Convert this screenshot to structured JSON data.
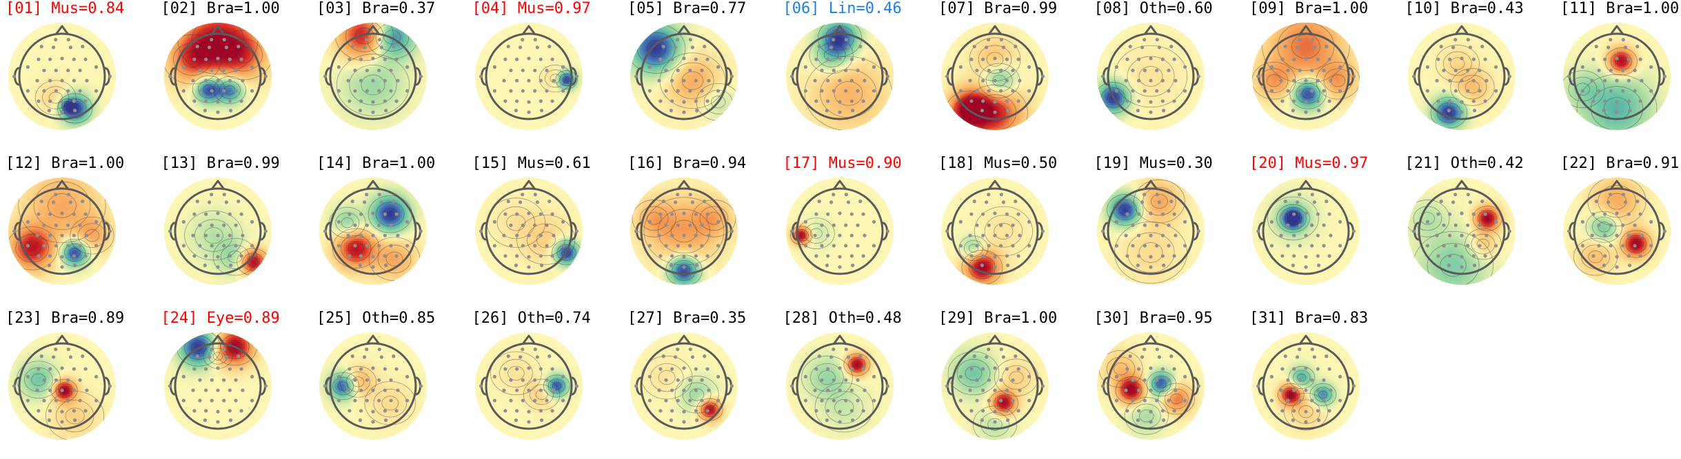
{
  "colors": {
    "default_title": "#000000",
    "flag_red": "#ff0000",
    "flag_blue": "#1e7fe0",
    "head_outline": "#5a5a5a",
    "sensor": "#8f8f8f",
    "map_neutral": "#fdf6b4"
  },
  "components": [
    {
      "label": "[01] Mus=0.84",
      "flag": "red",
      "blobs": [
        [
          0.3,
          0.75,
          0.24,
          -1.0
        ],
        [
          0.12,
          0.7,
          0.12,
          -0.5
        ],
        [
          -0.15,
          0.5,
          0.28,
          0.2
        ]
      ]
    },
    {
      "label": "[02] Bra=1.00",
      "flag": "none",
      "blobs": [
        [
          -0.22,
          0.3,
          0.22,
          -1.0
        ],
        [
          0.28,
          0.32,
          0.22,
          -0.8
        ],
        [
          0.0,
          -0.85,
          0.55,
          0.85
        ],
        [
          -0.6,
          -0.4,
          0.4,
          0.55
        ],
        [
          0.6,
          -0.5,
          0.4,
          0.5
        ]
      ]
    },
    {
      "label": "[03] Bra=0.37",
      "flag": "none",
      "blobs": [
        [
          0.45,
          -0.92,
          0.35,
          -0.8
        ],
        [
          -0.2,
          -0.95,
          0.4,
          0.9
        ],
        [
          0.0,
          0.2,
          0.5,
          -0.3
        ]
      ]
    },
    {
      "label": "[04] Mus=0.97",
      "flag": "red",
      "blobs": [
        [
          0.88,
          0.08,
          0.15,
          -1.0
        ],
        [
          0.62,
          0.05,
          0.22,
          0.15
        ]
      ]
    },
    {
      "label": "[05] Bra=0.77",
      "flag": "none",
      "blobs": [
        [
          -0.65,
          -0.65,
          0.4,
          -1.0
        ],
        [
          0.2,
          0.1,
          0.45,
          0.4
        ],
        [
          0.8,
          0.6,
          0.3,
          -0.2
        ]
      ]
    },
    {
      "label": "[06] Lin=0.46",
      "flag": "blue",
      "blobs": [
        [
          0.0,
          -0.9,
          0.3,
          -0.9
        ],
        [
          -0.2,
          -0.5,
          0.3,
          -0.4
        ],
        [
          0.2,
          0.4,
          0.6,
          0.35
        ]
      ]
    },
    {
      "label": "[07] Bra=0.99",
      "flag": "none",
      "blobs": [
        [
          0.1,
          0.1,
          0.28,
          -0.6
        ],
        [
          -0.6,
          0.8,
          0.32,
          1.0
        ],
        [
          0.0,
          0.85,
          0.45,
          0.8
        ],
        [
          0.0,
          -0.4,
          0.35,
          0.3
        ]
      ]
    },
    {
      "label": "[08] Oth=0.60",
      "flag": "none",
      "blobs": [
        [
          -0.88,
          0.5,
          0.25,
          -1.0
        ],
        [
          0.0,
          0.0,
          0.5,
          0.1
        ]
      ]
    },
    {
      "label": "[09] Bra=1.00",
      "flag": "none",
      "blobs": [
        [
          0.05,
          0.4,
          0.25,
          -1.0
        ],
        [
          0.0,
          -0.7,
          0.6,
          0.6
        ],
        [
          -0.75,
          0.1,
          0.3,
          0.4
        ],
        [
          0.75,
          0.1,
          0.3,
          0.4
        ]
      ]
    },
    {
      "label": "[10] Bra=0.43",
      "flag": "none",
      "blobs": [
        [
          -0.3,
          0.85,
          0.25,
          -1.0
        ],
        [
          0.25,
          0.25,
          0.3,
          0.3
        ],
        [
          -0.1,
          -0.3,
          0.3,
          0.15
        ]
      ]
    },
    {
      "label": "[11] Bra=1.00",
      "flag": "none",
      "blobs": [
        [
          0.1,
          -0.35,
          0.22,
          1.0
        ],
        [
          0.0,
          0.75,
          0.55,
          -0.55
        ],
        [
          -0.8,
          0.3,
          0.3,
          -0.25
        ]
      ]
    },
    {
      "label": "[12] Bra=1.00",
      "flag": "none",
      "blobs": [
        [
          0.3,
          0.5,
          0.22,
          -1.0
        ],
        [
          -0.7,
          0.4,
          0.35,
          0.85
        ],
        [
          0.0,
          -0.6,
          0.6,
          0.4
        ],
        [
          0.7,
          0.1,
          0.3,
          0.35
        ]
      ]
    },
    {
      "label": "[13] Bra=0.99",
      "flag": "none",
      "blobs": [
        [
          0.82,
          0.72,
          0.22,
          1.0
        ],
        [
          -0.1,
          0.1,
          0.4,
          -0.2
        ],
        [
          0.4,
          0.6,
          0.3,
          -0.3
        ]
      ]
    },
    {
      "label": "[14] Bra=1.00",
      "flag": "none",
      "blobs": [
        [
          0.4,
          -0.4,
          0.3,
          -1.0
        ],
        [
          -0.4,
          0.4,
          0.32,
          0.9
        ],
        [
          -0.6,
          -0.2,
          0.25,
          -0.4
        ],
        [
          0.5,
          0.65,
          0.35,
          0.4
        ]
      ]
    },
    {
      "label": "[15] Mus=0.61",
      "flag": "none",
      "blobs": [
        [
          0.88,
          0.5,
          0.2,
          -1.0
        ],
        [
          0.4,
          0.2,
          0.4,
          0.2
        ],
        [
          -0.3,
          -0.2,
          0.4,
          0.1
        ]
      ]
    },
    {
      "label": "[16] Bra=0.94",
      "flag": "none",
      "blobs": [
        [
          0.0,
          0.92,
          0.25,
          -1.0
        ],
        [
          0.0,
          0.0,
          0.55,
          0.45
        ],
        [
          -0.7,
          -0.3,
          0.3,
          0.3
        ],
        [
          0.7,
          -0.3,
          0.3,
          0.3
        ]
      ]
    },
    {
      "label": "[17] Mus=0.90",
      "flag": "red",
      "blobs": [
        [
          -0.9,
          0.1,
          0.15,
          1.0
        ],
        [
          -0.55,
          0.05,
          0.25,
          -0.15
        ]
      ]
    },
    {
      "label": "[18] Mus=0.50",
      "flag": "none",
      "blobs": [
        [
          -0.3,
          0.85,
          0.28,
          1.0
        ],
        [
          -0.5,
          0.4,
          0.2,
          -0.4
        ],
        [
          0.2,
          0.0,
          0.4,
          0.1
        ]
      ]
    },
    {
      "label": "[19] Mus=0.30",
      "flag": "none",
      "blobs": [
        [
          -0.6,
          -0.5,
          0.25,
          -1.0
        ],
        [
          0.2,
          -0.7,
          0.35,
          0.4
        ],
        [
          0.0,
          0.5,
          0.5,
          0.15
        ]
      ]
    },
    {
      "label": "[20] Mus=0.97",
      "flag": "red",
      "blobs": [
        [
          -0.3,
          -0.3,
          0.18,
          -1.0
        ],
        [
          -0.3,
          -0.3,
          0.35,
          -0.3
        ]
      ]
    },
    {
      "label": "[21] Oth=0.42",
      "flag": "none",
      "blobs": [
        [
          0.6,
          -0.3,
          0.2,
          1.0
        ],
        [
          -0.2,
          0.8,
          0.55,
          -0.4
        ],
        [
          -0.8,
          -0.3,
          0.3,
          -0.2
        ],
        [
          0.5,
          0.3,
          0.25,
          0.3
        ]
      ]
    },
    {
      "label": "[22] Bra=0.91",
      "flag": "none",
      "blobs": [
        [
          0.45,
          0.3,
          0.22,
          1.0
        ],
        [
          -0.3,
          -0.1,
          0.25,
          -0.5
        ],
        [
          0.0,
          -0.7,
          0.4,
          0.4
        ],
        [
          -0.5,
          0.6,
          0.3,
          0.3
        ]
      ]
    },
    {
      "label": "[23] Bra=0.89",
      "flag": "none",
      "blobs": [
        [
          0.05,
          0.1,
          0.18,
          1.0
        ],
        [
          -0.55,
          -0.15,
          0.3,
          -0.45
        ],
        [
          0.3,
          0.7,
          0.4,
          0.2
        ]
      ]
    },
    {
      "label": "[24] Eye=0.89",
      "flag": "red",
      "blobs": [
        [
          -0.45,
          -0.9,
          0.3,
          -1.0
        ],
        [
          0.4,
          -0.92,
          0.3,
          1.0
        ],
        [
          0.0,
          -0.7,
          0.2,
          0.15
        ]
      ]
    },
    {
      "label": "[25] Oth=0.85",
      "flag": "none",
      "blobs": [
        [
          -0.7,
          0.0,
          0.22,
          -0.9
        ],
        [
          -0.35,
          -0.1,
          0.25,
          0.4
        ],
        [
          0.4,
          0.4,
          0.35,
          0.15
        ]
      ]
    },
    {
      "label": "[26] Oth=0.74",
      "flag": "none",
      "blobs": [
        [
          0.65,
          0.0,
          0.18,
          -0.9
        ],
        [
          0.3,
          0.2,
          0.25,
          0.2
        ],
        [
          -0.3,
          -0.3,
          0.35,
          0.1
        ]
      ]
    },
    {
      "label": "[27] Bra=0.35",
      "flag": "none",
      "blobs": [
        [
          0.6,
          0.55,
          0.18,
          1.0
        ],
        [
          0.3,
          0.2,
          0.3,
          -0.3
        ],
        [
          -0.4,
          -0.2,
          0.35,
          0.1
        ]
      ]
    },
    {
      "label": "[28] Oth=0.48",
      "flag": "none",
      "blobs": [
        [
          0.4,
          -0.5,
          0.18,
          1.0
        ],
        [
          -0.3,
          -0.2,
          0.35,
          -0.3
        ],
        [
          0.1,
          0.5,
          0.4,
          -0.15
        ]
      ]
    },
    {
      "label": "[29] Bra=1.00",
      "flag": "none",
      "blobs": [
        [
          0.2,
          0.4,
          0.2,
          1.0
        ],
        [
          -0.5,
          -0.3,
          0.35,
          -0.45
        ],
        [
          0.5,
          -0.2,
          0.3,
          0.2
        ],
        [
          0.0,
          0.9,
          0.3,
          -0.2
        ]
      ]
    },
    {
      "label": "[30] Bra=0.95",
      "flag": "none",
      "blobs": [
        [
          -0.45,
          0.1,
          0.22,
          1.0
        ],
        [
          0.25,
          -0.05,
          0.2,
          -0.9
        ],
        [
          0.6,
          0.3,
          0.25,
          0.6
        ],
        [
          -0.7,
          -0.4,
          0.3,
          0.3
        ],
        [
          -0.1,
          0.7,
          0.3,
          -0.25
        ]
      ]
    },
    {
      "label": "[31] Bra=0.83",
      "flag": "none",
      "blobs": [
        [
          -0.35,
          0.2,
          0.18,
          1.0
        ],
        [
          -0.1,
          -0.2,
          0.18,
          -0.6
        ],
        [
          0.4,
          0.2,
          0.18,
          -0.7
        ],
        [
          0.0,
          0.6,
          0.3,
          0.2
        ]
      ]
    }
  ]
}
